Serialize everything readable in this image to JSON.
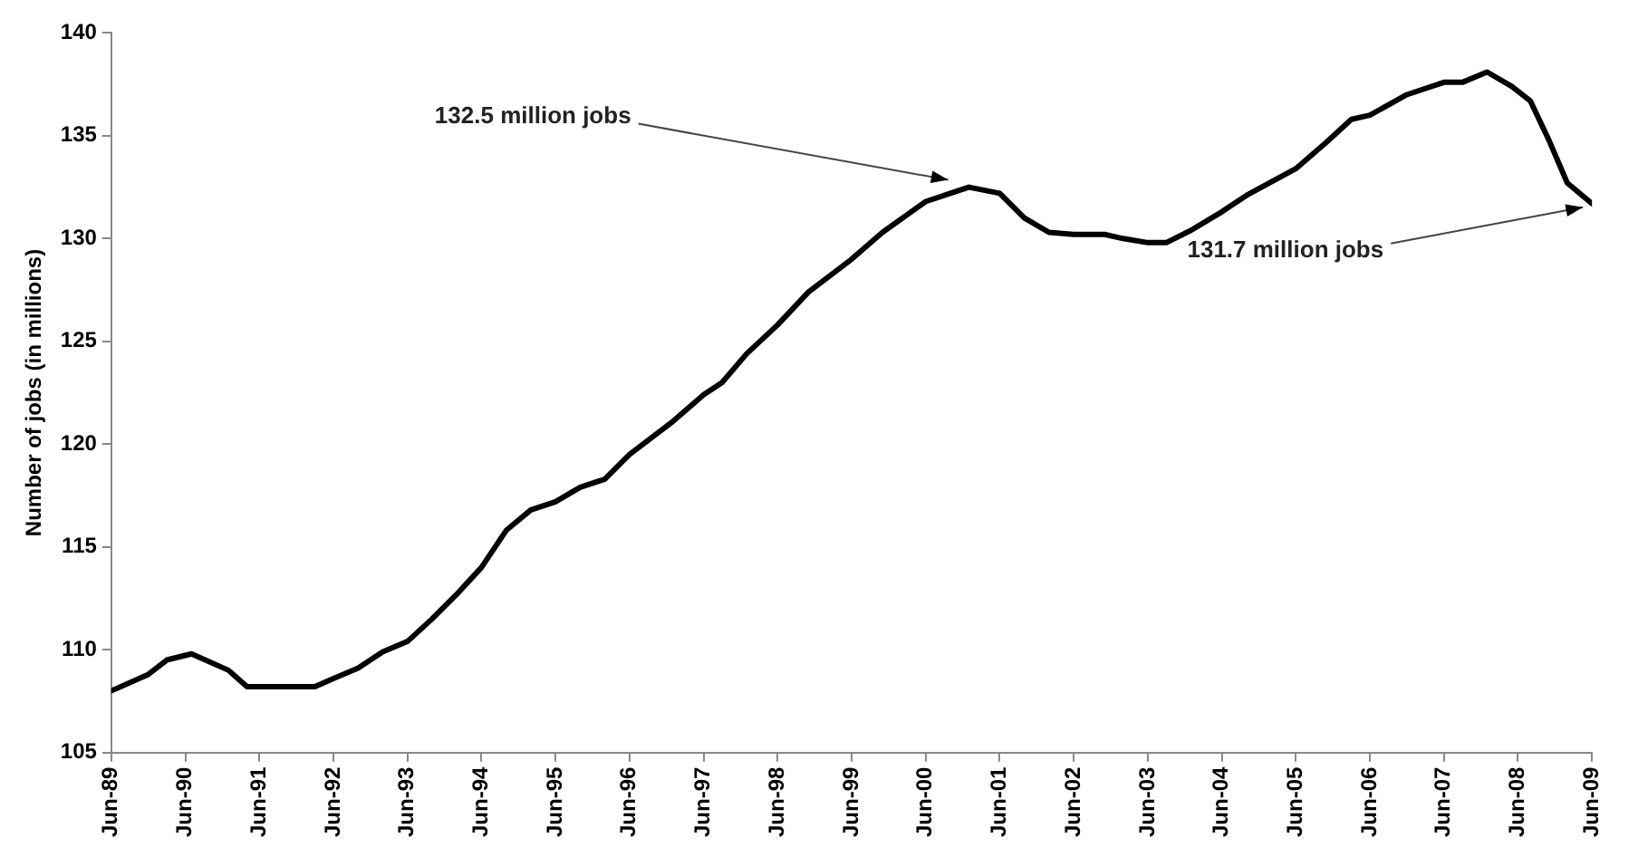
{
  "chart_data": {
    "type": "line",
    "ylabel": "Number of jobs (in millions)",
    "x": [
      "1989-06",
      "1989-12",
      "1990-03",
      "1990-07",
      "1991-01",
      "1991-04",
      "1992-03",
      "1992-06",
      "1992-10",
      "1993-02",
      "1993-06",
      "1993-10",
      "1994-02",
      "1994-06",
      "1994-10",
      "1995-02",
      "1995-06",
      "1995-10",
      "1996-02",
      "1996-06",
      "1997-01",
      "1997-06",
      "1997-09",
      "1998-01",
      "1998-06",
      "1998-11",
      "1999-06",
      "1999-11",
      "2000-06",
      "2000-10",
      "2001-01",
      "2001-06",
      "2001-10",
      "2002-02",
      "2002-06",
      "2002-11",
      "2003-02",
      "2003-06",
      "2003-09",
      "2004-01",
      "2004-06",
      "2004-10",
      "2005-06",
      "2005-11",
      "2006-03",
      "2006-06",
      "2006-12",
      "2007-06",
      "2007-09",
      "2008-01",
      "2008-05",
      "2008-08",
      "2008-11",
      "2009-02",
      "2009-06"
    ],
    "series": [
      {
        "color": "#000000",
        "values": [
          108.0,
          108.8,
          109.5,
          109.8,
          109.0,
          108.2,
          108.2,
          108.6,
          109.1,
          109.9,
          110.4,
          111.5,
          112.7,
          114.0,
          115.8,
          116.8,
          117.2,
          117.9,
          118.3,
          119.5,
          121.1,
          122.4,
          123.0,
          124.4,
          125.8,
          127.4,
          129.0,
          130.3,
          131.8,
          132.2,
          132.5,
          132.2,
          131.0,
          130.3,
          130.2,
          130.2,
          130.0,
          129.8,
          129.8,
          130.4,
          131.3,
          132.1,
          133.4,
          134.7,
          135.8,
          136.0,
          137.0,
          137.6,
          137.6,
          138.1,
          137.4,
          136.7,
          134.8,
          132.7,
          131.7
        ]
      }
    ],
    "xlim": [
      "1989-06",
      "2009-06"
    ],
    "xticks": [
      {
        "value": "1989-06",
        "label": "Jun-89"
      },
      {
        "value": "1990-06",
        "label": "Jun-90"
      },
      {
        "value": "1991-06",
        "label": "Jun-91"
      },
      {
        "value": "1992-06",
        "label": "Jun-92"
      },
      {
        "value": "1993-06",
        "label": "Jun-93"
      },
      {
        "value": "1994-06",
        "label": "Jun-94"
      },
      {
        "value": "1995-06",
        "label": "Jun-95"
      },
      {
        "value": "1996-06",
        "label": "Jun-96"
      },
      {
        "value": "1997-06",
        "label": "Jun-97"
      },
      {
        "value": "1998-06",
        "label": "Jun-98"
      },
      {
        "value": "1999-06",
        "label": "Jun-99"
      },
      {
        "value": "2000-06",
        "label": "Jun-00"
      },
      {
        "value": "2001-06",
        "label": "Jun-01"
      },
      {
        "value": "2002-06",
        "label": "Jun-02"
      },
      {
        "value": "2003-06",
        "label": "Jun-03"
      },
      {
        "value": "2004-06",
        "label": "Jun-04"
      },
      {
        "value": "2005-06",
        "label": "Jun-05"
      },
      {
        "value": "2006-06",
        "label": "Jun-06"
      },
      {
        "value": "2007-06",
        "label": "Jun-07"
      },
      {
        "value": "2008-06",
        "label": "Jun-08"
      },
      {
        "value": "2009-06",
        "label": "Jun-09"
      }
    ],
    "ylim": [
      105,
      140
    ],
    "yticks": [
      105,
      110,
      115,
      120,
      125,
      130,
      135,
      140
    ],
    "annotations": [
      {
        "text": "132.5 million jobs",
        "x": "2000-12",
        "y": 132.5
      },
      {
        "text": "131.7 million jobs",
        "x": "2009-06",
        "y": 131.7
      }
    ],
    "grid": false,
    "legend": false,
    "marker": "none",
    "line_style": "solid"
  }
}
